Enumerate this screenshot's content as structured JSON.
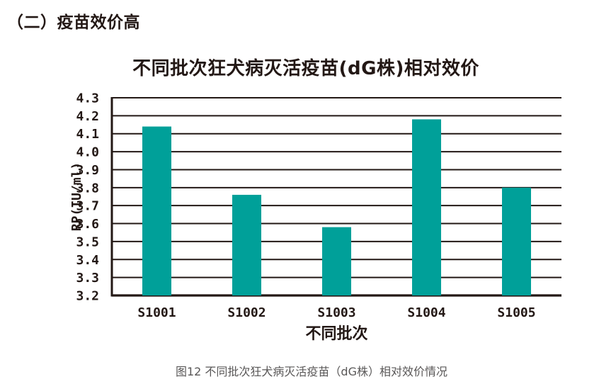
{
  "page": {
    "heading": "（二）疫苗效价高",
    "caption": "图12 不同批次狂犬病灭活疫苗（dG株）相对效价情况"
  },
  "chart_data": {
    "type": "bar",
    "title": "不同批次狂犬病灭活疫苗(dG株)相对效价",
    "categories": [
      "S1001",
      "S1002",
      "S1003",
      "S1004",
      "S1005"
    ],
    "values": [
      4.14,
      3.76,
      3.58,
      4.18,
      3.8
    ],
    "xlabel": "不同批次",
    "ylabel": "RP(IU/ml)",
    "ylim": [
      3.2,
      4.3
    ],
    "ytick_step": 0.1,
    "ytick_labels": [
      "3.2",
      "3.3",
      "3.4",
      "3.5",
      "3.6",
      "3.7",
      "3.8",
      "3.9",
      "4.0",
      "4.1",
      "4.2",
      "4.3"
    ],
    "grid": true,
    "legend": "none",
    "bar_color": "#00A099",
    "grid_color": "#231815",
    "axis_color": "#231815",
    "text_color": "#231815",
    "caption_color": "#595757"
  }
}
